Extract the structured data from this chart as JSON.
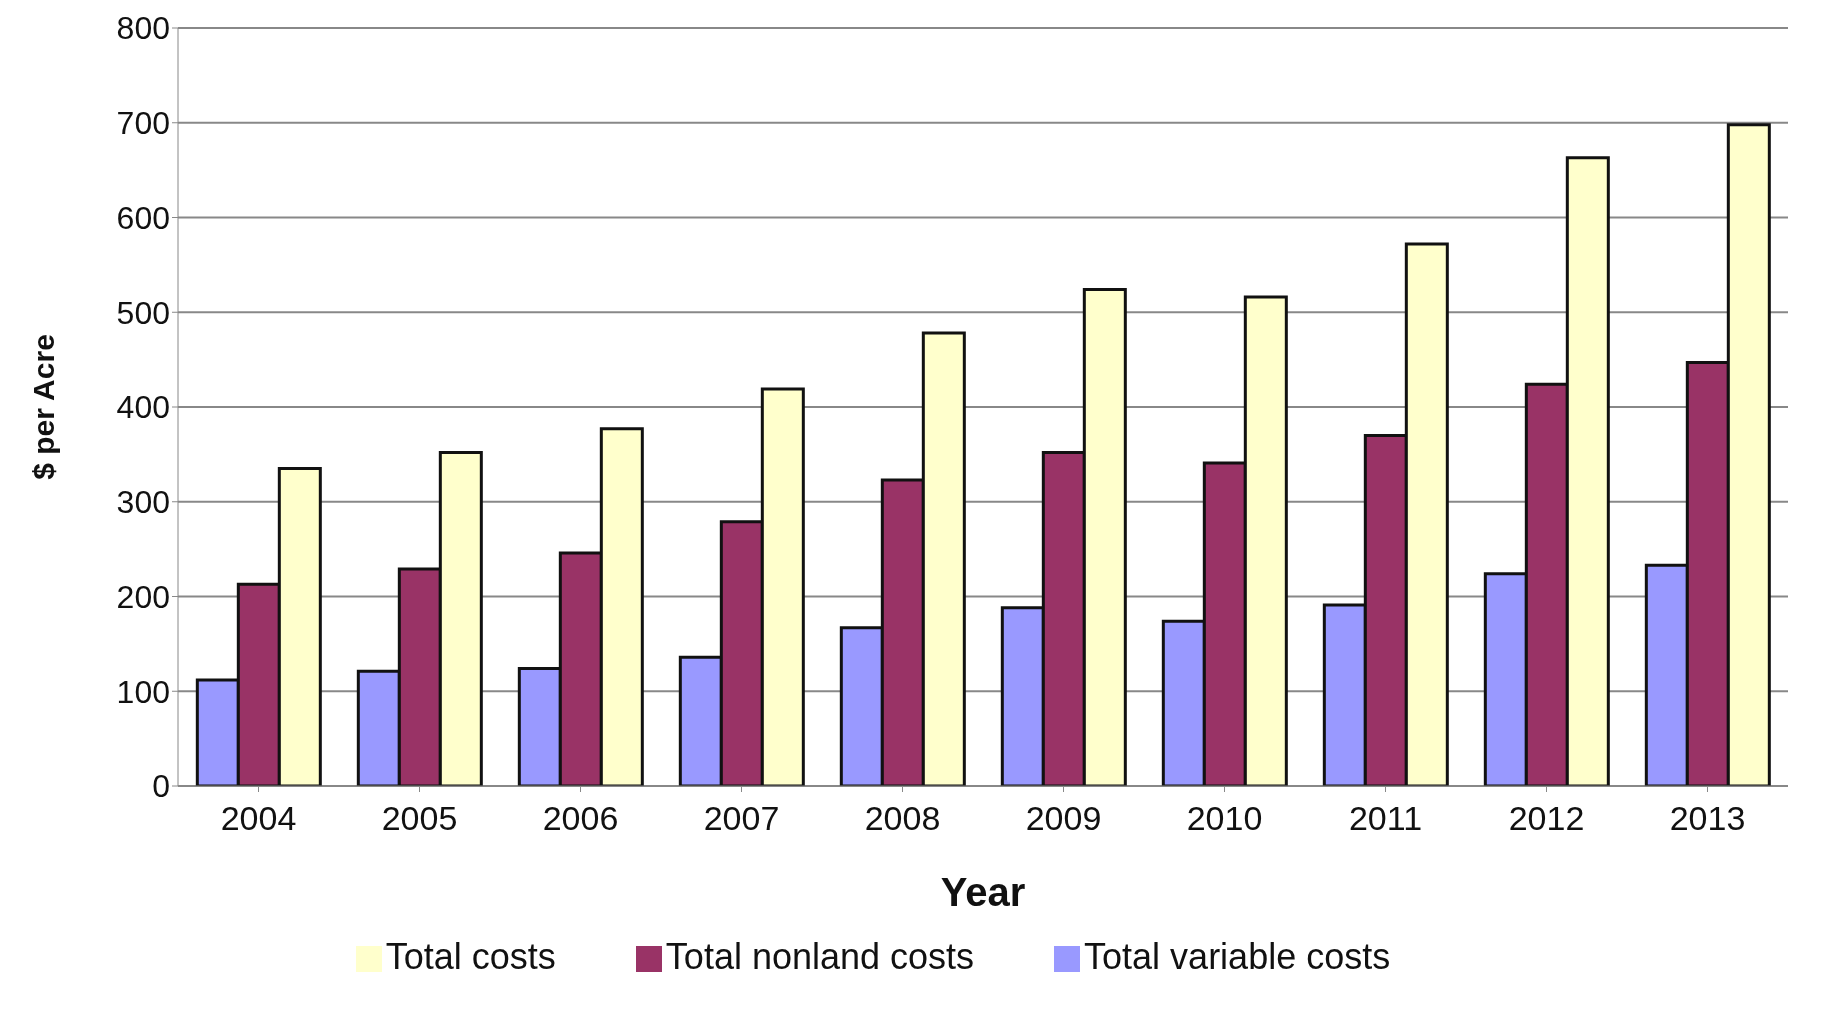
{
  "chart_data": {
    "type": "bar",
    "xlabel": "Year",
    "ylabel": "$ per Acre",
    "categories": [
      "2004",
      "2005",
      "2006",
      "2007",
      "2008",
      "2009",
      "2010",
      "2011",
      "2012",
      "2013"
    ],
    "series": [
      {
        "name": "Total variable costs",
        "color": "#9999ff",
        "values": [
          112,
          121,
          124,
          136,
          167,
          188,
          174,
          191,
          224,
          233
        ]
      },
      {
        "name": "Total nonland costs",
        "color": "#993366",
        "values": [
          213,
          229,
          246,
          279,
          323,
          352,
          341,
          370,
          424,
          447
        ]
      },
      {
        "name": "Total costs",
        "color": "#ffffcc",
        "values": [
          335,
          352,
          377,
          419,
          478,
          524,
          516,
          572,
          663,
          698
        ]
      }
    ],
    "ylim": [
      0,
      800
    ],
    "yticks": [
      0,
      100,
      200,
      300,
      400,
      500,
      600,
      700,
      800
    ],
    "grid": "y",
    "legend": "bottom"
  }
}
